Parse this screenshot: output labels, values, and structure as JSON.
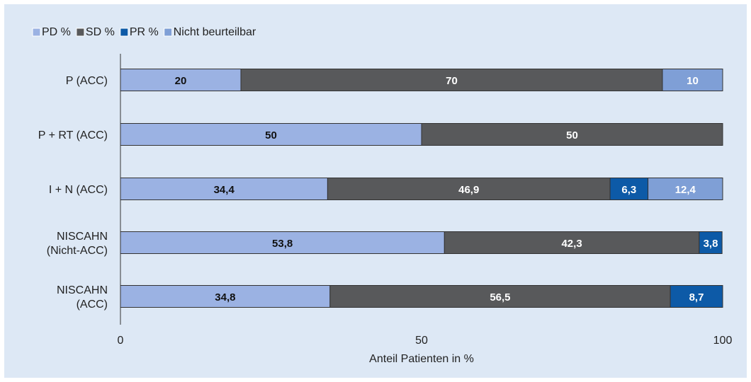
{
  "chart_data": {
    "type": "bar",
    "orientation": "horizontal",
    "stacked": true,
    "categories": [
      "P (ACC)",
      "P + RT (ACC)",
      "I + N (ACC)",
      "NISCAHN\n(Nicht-ACC)",
      "NISCAHN\n(ACC)"
    ],
    "series": [
      {
        "name": "PD %",
        "color": "#9bb2e3",
        "values": [
          20,
          50,
          34.4,
          53.8,
          34.8
        ],
        "labels": [
          "20",
          "50",
          "34,4",
          "53,8",
          "34,8"
        ]
      },
      {
        "name": "SD %",
        "color": "#58595b",
        "values": [
          70,
          50,
          46.9,
          42.3,
          56.5
        ],
        "labels": [
          "70",
          "50",
          "46,9",
          "42,3",
          "56,5"
        ]
      },
      {
        "name": "PR %",
        "color": "#0d5aa7",
        "values": [
          0,
          0,
          6.3,
          3.8,
          8.7
        ],
        "labels": [
          "",
          "",
          "6,3",
          "3,8",
          "8,7"
        ]
      },
      {
        "name": "Nicht beurteilbar",
        "color": "#7f9fd6",
        "values": [
          10,
          0,
          12.4,
          0,
          0
        ],
        "labels": [
          "10",
          "",
          "12,4",
          "",
          ""
        ]
      }
    ],
    "xlabel": "Anteil Patienten in %",
    "ylabel": "",
    "xlim": [
      0,
      100
    ],
    "xticks": [
      "0",
      "50",
      "100"
    ],
    "grid": false,
    "legend_position": "top-left"
  }
}
